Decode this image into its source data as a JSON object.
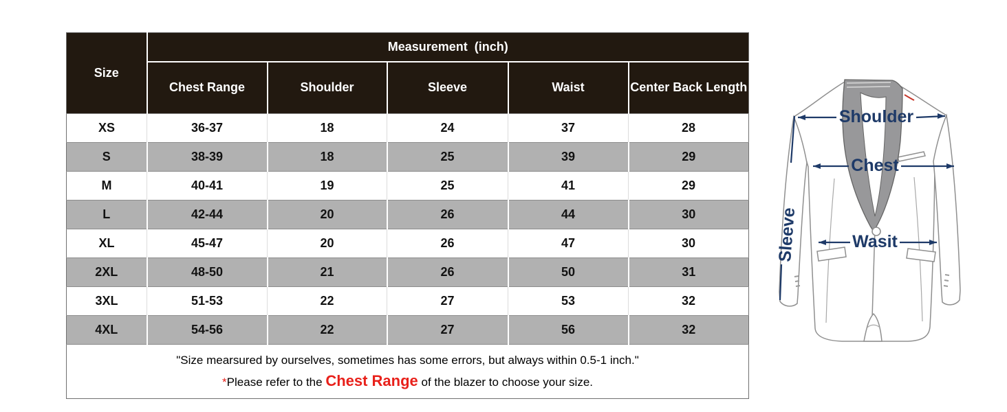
{
  "table": {
    "size_header": "Size",
    "measurement_header": "Measurement  (inch)",
    "columns": [
      "Chest Range",
      "Shoulder",
      "Sleeve",
      "Waist",
      "Center Back Length"
    ],
    "rows": [
      {
        "size": "XS",
        "values": [
          "36-37",
          "18",
          "24",
          "37",
          "28"
        ]
      },
      {
        "size": "S",
        "values": [
          "38-39",
          "18",
          "25",
          "39",
          "29"
        ]
      },
      {
        "size": "M",
        "values": [
          "40-41",
          "19",
          "25",
          "41",
          "29"
        ]
      },
      {
        "size": "L",
        "values": [
          "42-44",
          "20",
          "26",
          "44",
          "30"
        ]
      },
      {
        "size": "XL",
        "values": [
          "45-47",
          "20",
          "26",
          "47",
          "30"
        ]
      },
      {
        "size": "2XL",
        "values": [
          "48-50",
          "21",
          "26",
          "50",
          "31"
        ]
      },
      {
        "size": "3XL",
        "values": [
          "51-53",
          "22",
          "27",
          "53",
          "32"
        ]
      },
      {
        "size": "4XL",
        "values": [
          "54-56",
          "22",
          "27",
          "56",
          "32"
        ]
      }
    ],
    "note_line1": "\"Size mearsured by ourselves, sometimes has some errors, but always within 0.5-1 inch.\"",
    "note_line2_prefix": "*",
    "note_line2_before": "Please refer to the ",
    "note_line2_highlight": "Chest Range",
    "note_line2_after": " of the blazer to choose your size."
  },
  "diagram": {
    "labels": {
      "shoulder": "Shoulder",
      "chest": "Chest",
      "sleeve": "Sleeve",
      "waist": "Wasit"
    }
  },
  "colors": {
    "header_bg": "#221910",
    "row_alt_gray": "#b1b1b1",
    "accent_red": "#e8201a",
    "label_navy": "#1e3a68",
    "lapel_gray": "#98989a"
  }
}
